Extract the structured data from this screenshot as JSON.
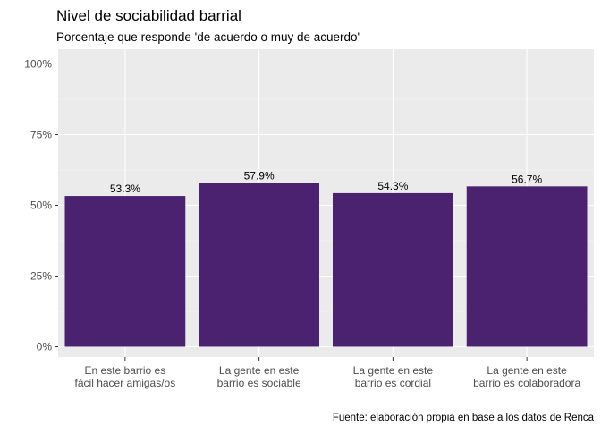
{
  "chart_data": {
    "type": "bar",
    "title": "Nivel de sociabilidad barrial",
    "subtitle": "Porcentaje que responde 'de acuerdo o muy de acuerdo'",
    "caption": "Fuente: elaboración propia en base a los datos de Renca",
    "xlabel": "",
    "ylabel": "",
    "categories": [
      [
        "En este barrio es",
        "fácil hacer amigas/os"
      ],
      [
        "La gente en este",
        "barrio es sociable"
      ],
      [
        "La gente en este",
        "barrio es cordial"
      ],
      [
        "La gente en este",
        "barrio es colaboradora"
      ]
    ],
    "values": [
      53.3,
      57.9,
      54.3,
      56.7
    ],
    "data_labels": [
      "53.3%",
      "57.9%",
      "54.3%",
      "56.7%"
    ],
    "ylim": [
      0,
      100
    ],
    "y_ticks": [
      0,
      25,
      50,
      75,
      100
    ],
    "y_tick_labels": [
      "0%",
      "25%",
      "50%",
      "75%",
      "100%"
    ],
    "grid": true,
    "legend": "none",
    "colors": {
      "bar": "#4B2270",
      "panel": "#EBEBEB",
      "grid_major": "#FFFFFF",
      "grid_minor": "#F5F5F5",
      "tick_text": "#4D4D4D",
      "text": "#000000"
    }
  }
}
